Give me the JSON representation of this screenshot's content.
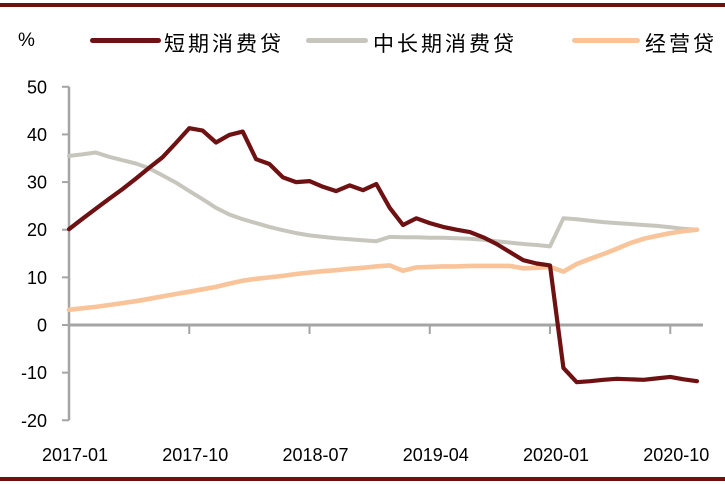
{
  "unit_label": "%",
  "legend": [
    {
      "label": "短期消费贷",
      "color": "#6E1112"
    },
    {
      "label": "中长期消费贷",
      "color": "#C7C6BD"
    },
    {
      "label": "经营贷",
      "color": "#F9C499"
    }
  ],
  "frame": {
    "border_color": "#6E1112",
    "axis_color": "#A5A5A5",
    "text_color": "#000000"
  },
  "chart_data": {
    "type": "line",
    "title": "",
    "ylabel": "%",
    "ylim": [
      -20,
      50
    ],
    "y_ticks": [
      50,
      40,
      30,
      20,
      10,
      0,
      -10,
      -20
    ],
    "grid": false,
    "legend_position": "top",
    "x_tick_labels": [
      "2017-01",
      "2017-10",
      "2018-07",
      "2019-04",
      "2020-01",
      "2020-10"
    ],
    "x_tick_month_indices": [
      0,
      9,
      18,
      27,
      36,
      45
    ],
    "x": [
      "2017-01",
      "2017-02",
      "2017-03",
      "2017-04",
      "2017-05",
      "2017-06",
      "2017-07",
      "2017-08",
      "2017-09",
      "2017-10",
      "2017-11",
      "2017-12",
      "2018-01",
      "2018-02",
      "2018-03",
      "2018-04",
      "2018-05",
      "2018-06",
      "2018-07",
      "2018-08",
      "2018-09",
      "2018-10",
      "2018-11",
      "2018-12",
      "2019-01",
      "2019-02",
      "2019-03",
      "2019-04",
      "2019-05",
      "2019-06",
      "2019-07",
      "2019-08",
      "2019-09",
      "2019-10",
      "2019-11",
      "2019-12",
      "2020-01",
      "2020-02",
      "2020-03",
      "2020-04",
      "2020-05",
      "2020-06",
      "2020-07",
      "2020-08",
      "2020-09",
      "2020-10",
      "2020-11",
      "2020-12"
    ],
    "series": [
      {
        "name": "短期消费贷",
        "color": "#6E1112",
        "values": [
          20.1,
          22.3,
          24.4,
          26.5,
          28.5,
          30.7,
          33.0,
          35.2,
          38.2,
          41.3,
          40.8,
          38.3,
          39.9,
          40.6,
          34.8,
          33.8,
          31.0,
          30.0,
          30.2,
          29.0,
          28.1,
          29.3,
          28.3,
          29.6,
          24.6,
          21.0,
          22.4,
          21.4,
          20.6,
          20.0,
          19.5,
          18.4,
          17.0,
          15.3,
          13.6,
          12.9,
          12.5,
          -9.0,
          -12.0,
          -11.8,
          -11.5,
          -11.3,
          -11.4,
          -11.5,
          -11.2,
          -10.9,
          -11.4,
          -11.8
        ]
      },
      {
        "name": "中长期消费贷",
        "color": "#C7C6BD",
        "values": [
          35.5,
          35.8,
          36.2,
          35.3,
          34.6,
          33.9,
          32.9,
          31.4,
          29.9,
          28.1,
          26.4,
          24.6,
          23.2,
          22.2,
          21.4,
          20.6,
          19.9,
          19.3,
          18.8,
          18.5,
          18.2,
          18.0,
          17.8,
          17.6,
          18.5,
          18.4,
          18.4,
          18.3,
          18.3,
          18.2,
          18.1,
          17.9,
          17.6,
          17.3,
          17.0,
          16.8,
          16.5,
          22.4,
          22.2,
          21.9,
          21.6,
          21.4,
          21.2,
          21.0,
          20.8,
          20.5,
          20.2,
          20.0
        ]
      },
      {
        "name": "经营贷",
        "color": "#F9C499",
        "values": [
          3.2,
          3.5,
          3.8,
          4.2,
          4.6,
          5.0,
          5.5,
          6.0,
          6.5,
          7.0,
          7.5,
          8.0,
          8.7,
          9.3,
          9.7,
          10.0,
          10.3,
          10.7,
          11.0,
          11.3,
          11.5,
          11.8,
          12.0,
          12.3,
          12.5,
          11.4,
          12.1,
          12.2,
          12.3,
          12.3,
          12.4,
          12.4,
          12.4,
          12.4,
          11.9,
          12.0,
          12.2,
          11.2,
          12.8,
          13.9,
          14.9,
          16.0,
          17.2,
          18.1,
          18.7,
          19.3,
          19.7,
          20.0
        ]
      }
    ]
  }
}
